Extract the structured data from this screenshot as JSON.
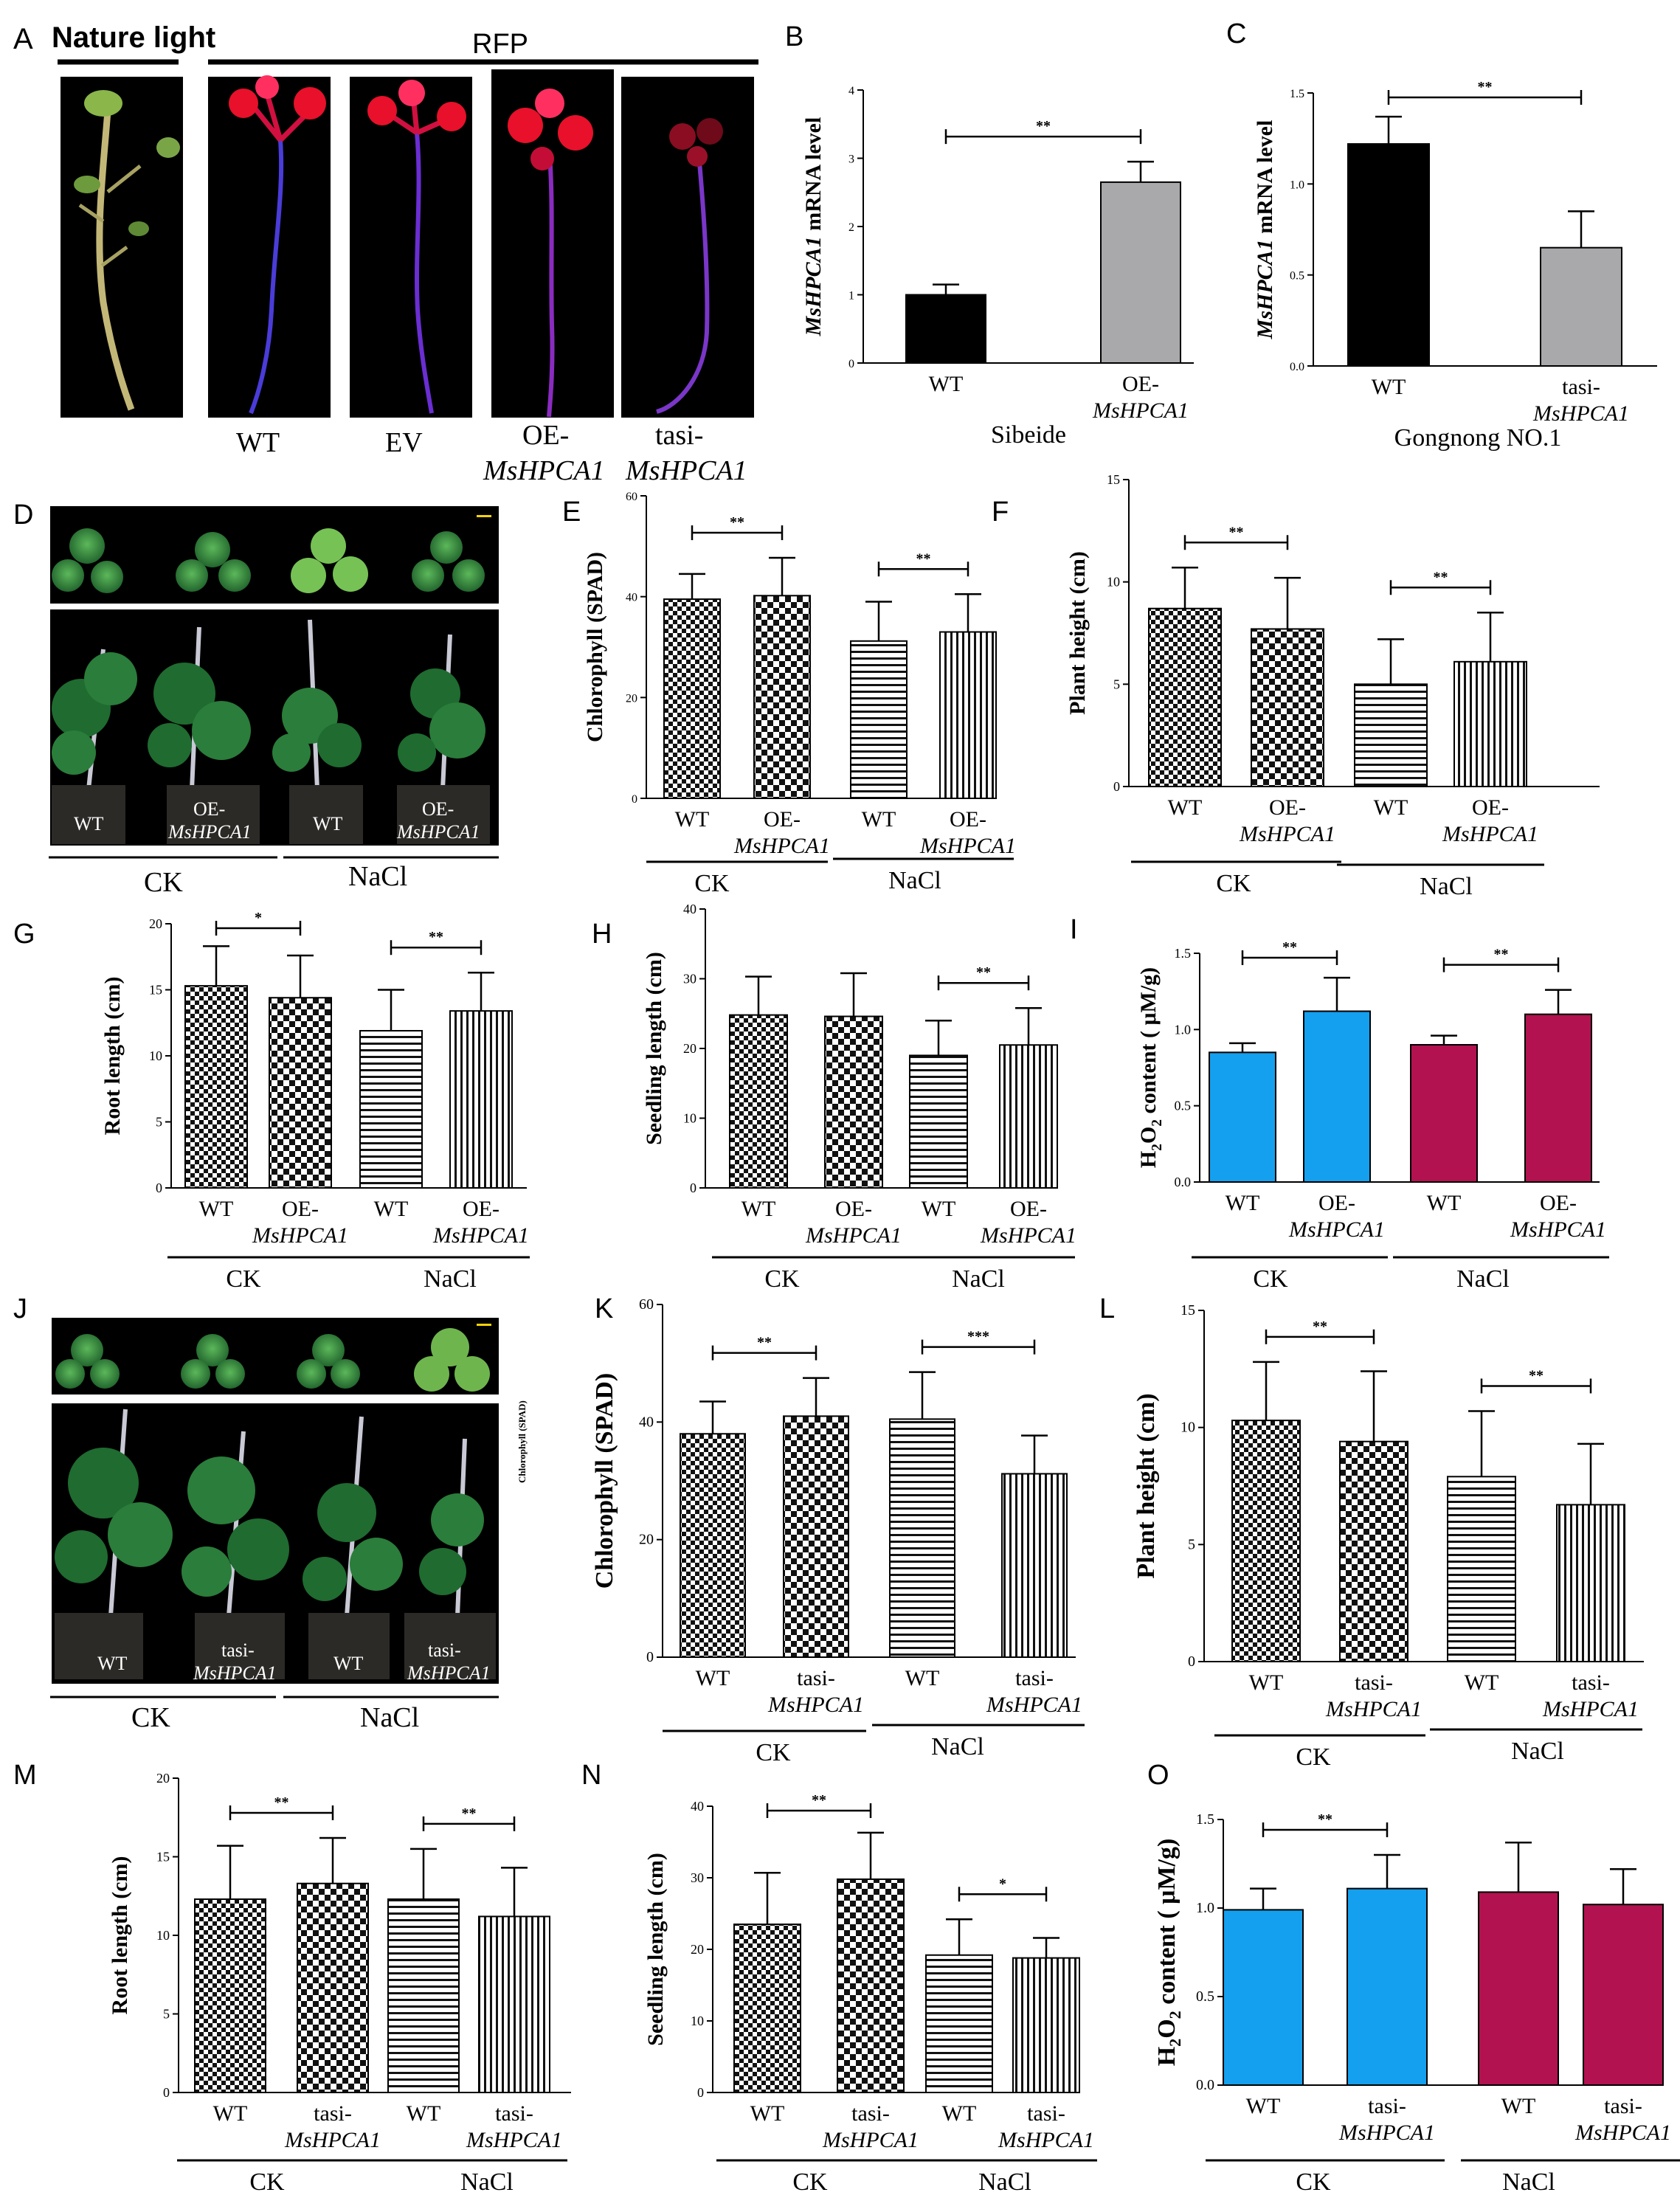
{
  "panel_letters": {
    "A": "A",
    "B": "B",
    "C": "C",
    "D": "D",
    "E": "E",
    "F": "F",
    "G": "G",
    "H": "H",
    "I": "I",
    "J": "J",
    "K": "K",
    "L": "L",
    "M": "M",
    "N": "N",
    "O": "O"
  },
  "panelA": {
    "title_left": "Nature light",
    "title_right": "RFP",
    "captions": [
      {
        "line1": "WT",
        "line2": ""
      },
      {
        "line1": "EV",
        "line2": ""
      },
      {
        "line1": "OE-",
        "line2": "MsHPCA1"
      },
      {
        "line1": "tasi-",
        "line2": "MsHPCA1"
      }
    ]
  },
  "photoD": {
    "pots": [
      "WT",
      "OE-",
      "MsHPCA1",
      "WT",
      "OE-",
      "MsHPCA1"
    ],
    "groups": [
      "CK",
      "NaCl"
    ]
  },
  "photoJ": {
    "pots": [
      "WT",
      "tasi-",
      "MsHPCA1",
      "WT",
      "tasi-",
      "MsHPCA1"
    ],
    "groups": [
      "CK",
      "NaCl"
    ],
    "side_label": "Chlorophyll (SPAD)"
  },
  "colors": {
    "black": "#000000",
    "gray": "#a9a9ab",
    "blue": "#14a0ee",
    "crimson": "#b2124f",
    "red_plant": "#e8102a",
    "blue_stem": "#4a3cd8"
  },
  "chart_data": [
    {
      "id": "B",
      "type": "bar",
      "ylabel": "MsHPCA1 mRNA level",
      "ylim": [
        0,
        4
      ],
      "yticks": [
        "0",
        "1",
        "2",
        "3",
        "4"
      ],
      "categories": [
        {
          "l1": "WT",
          "l2": ""
        },
        {
          "l1": "OE-",
          "l2": "MsHPCA1"
        }
      ],
      "values": [
        1.0,
        2.65
      ],
      "errors": [
        0.15,
        0.3
      ],
      "fills": [
        "black",
        "gray"
      ],
      "groups": [
        "Sibeide"
      ],
      "sig": [
        {
          "from": 0,
          "to": 1,
          "label": "**"
        }
      ]
    },
    {
      "id": "C",
      "type": "bar",
      "ylabel": "MsHPCA1 mRNA level",
      "ylim": [
        0,
        1.5
      ],
      "yticks": [
        "0.0",
        "0.5",
        "1.0",
        "1.5"
      ],
      "categories": [
        {
          "l1": "WT",
          "l2": ""
        },
        {
          "l1": "tasi-",
          "l2": "MsHPCA1"
        }
      ],
      "values": [
        1.22,
        0.65
      ],
      "errors": [
        0.15,
        0.2
      ],
      "fills": [
        "black",
        "gray"
      ],
      "groups": [
        "Gongnong NO.1"
      ],
      "sig": [
        {
          "from": 0,
          "to": 1,
          "label": "**"
        }
      ]
    },
    {
      "id": "E",
      "type": "bar",
      "ylabel": "Chlorophyll (SPAD)",
      "ylim": [
        0,
        60
      ],
      "yticks": [
        "0",
        "20",
        "40",
        "60"
      ],
      "categories": [
        {
          "l1": "WT",
          "l2": ""
        },
        {
          "l1": "OE-",
          "l2": "MsHPCA1"
        },
        {
          "l1": "WT",
          "l2": ""
        },
        {
          "l1": "OE-",
          "l2": "MsHPCA1"
        }
      ],
      "values": [
        39.5,
        40.2,
        31.2,
        33.0
      ],
      "errors": [
        5,
        7.5,
        7.8,
        7.5
      ],
      "fills": [
        "checkA",
        "checkB",
        "hlines",
        "vlines"
      ],
      "groups": [
        "CK",
        "NaCl"
      ],
      "sig": [
        {
          "from": 0,
          "to": 1,
          "label": "**"
        },
        {
          "from": 2,
          "to": 3,
          "label": "**"
        }
      ]
    },
    {
      "id": "F",
      "type": "bar",
      "ylabel": "Plant height (cm)",
      "ylim": [
        0,
        15
      ],
      "yticks": [
        "0",
        "5",
        "10",
        "15"
      ],
      "categories": [
        {
          "l1": "WT",
          "l2": ""
        },
        {
          "l1": "OE-",
          "l2": "MsHPCA1"
        },
        {
          "l1": "WT",
          "l2": ""
        },
        {
          "l1": "OE-",
          "l2": "MsHPCA1"
        }
      ],
      "values": [
        8.7,
        7.7,
        5.0,
        6.1
      ],
      "errors": [
        2.0,
        2.5,
        2.2,
        2.4
      ],
      "fills": [
        "checkA",
        "checkB",
        "hlines",
        "vlines"
      ],
      "groups": [
        "CK",
        "NaCl"
      ],
      "sig": [
        {
          "from": 0,
          "to": 1,
          "label": "**"
        },
        {
          "from": 2,
          "to": 3,
          "label": "**"
        }
      ]
    },
    {
      "id": "G",
      "type": "bar",
      "ylabel": "Root length (cm)",
      "ylim": [
        0,
        20
      ],
      "yticks": [
        "0",
        "5",
        "10",
        "15",
        "20"
      ],
      "categories": [
        {
          "l1": "WT",
          "l2": ""
        },
        {
          "l1": "OE-",
          "l2": "MsHPCA1"
        },
        {
          "l1": "WT",
          "l2": ""
        },
        {
          "l1": "OE-",
          "l2": "MsHPCA1"
        }
      ],
      "values": [
        15.3,
        14.4,
        11.9,
        13.4
      ],
      "errors": [
        3,
        3.2,
        3.1,
        2.9
      ],
      "fills": [
        "checkA",
        "checkB",
        "hlines",
        "vlines"
      ],
      "groups": [
        "CK",
        "NaCl"
      ],
      "sig": [
        {
          "from": 0,
          "to": 1,
          "label": "*"
        },
        {
          "from": 2,
          "to": 3,
          "label": "**"
        }
      ]
    },
    {
      "id": "H",
      "type": "bar",
      "ylabel": "Seedling length (cm)",
      "ylim": [
        0,
        40
      ],
      "yticks": [
        "0",
        "10",
        "20",
        "30",
        "40"
      ],
      "categories": [
        {
          "l1": "WT",
          "l2": ""
        },
        {
          "l1": "OE-",
          "l2": "MsHPCA1"
        },
        {
          "l1": "WT",
          "l2": ""
        },
        {
          "l1": "OE-",
          "l2": "MsHPCA1"
        }
      ],
      "values": [
        24.8,
        24.6,
        19.0,
        20.5
      ],
      "errors": [
        5.5,
        6.2,
        5.0,
        5.3
      ],
      "fills": [
        "checkA",
        "checkB",
        "hlines",
        "vlines"
      ],
      "groups": [
        "CK",
        "NaCl"
      ],
      "sig": [
        {
          "from": 2,
          "to": 3,
          "label": "**"
        }
      ]
    },
    {
      "id": "I",
      "type": "bar",
      "ylabel": "H2O2 content ( μM/g)",
      "ylim": [
        0,
        1.5
      ],
      "yticks": [
        "0.0",
        "0.5",
        "1.0",
        "1.5"
      ],
      "categories": [
        {
          "l1": "WT",
          "l2": ""
        },
        {
          "l1": "OE-",
          "l2": "MsHPCA1"
        },
        {
          "l1": "WT",
          "l2": ""
        },
        {
          "l1": "OE-",
          "l2": "MsHPCA1"
        }
      ],
      "values": [
        0.85,
        1.12,
        0.9,
        1.1
      ],
      "errors": [
        0.06,
        0.22,
        0.06,
        0.16
      ],
      "fills": [
        "blue",
        "blue",
        "crimson",
        "crimson"
      ],
      "groups": [
        "CK",
        "NaCl"
      ],
      "sig": [
        {
          "from": 0,
          "to": 1,
          "label": "**"
        },
        {
          "from": 2,
          "to": 3,
          "label": "**"
        }
      ]
    },
    {
      "id": "K",
      "type": "bar",
      "ylabel": "Chlorophyll (SPAD)",
      "ylim": [
        0,
        60
      ],
      "yticks": [
        "0",
        "20",
        "40",
        "60"
      ],
      "categories": [
        {
          "l1": "WT",
          "l2": ""
        },
        {
          "l1": "tasi-",
          "l2": "MsHPCA1"
        },
        {
          "l1": "WT",
          "l2": ""
        },
        {
          "l1": "tasi-",
          "l2": "MsHPCA1"
        }
      ],
      "values": [
        38.0,
        41.0,
        40.5,
        31.2
      ],
      "errors": [
        5.5,
        6.5,
        8,
        6.5
      ],
      "fills": [
        "checkA",
        "checkB",
        "hlines",
        "vlines"
      ],
      "groups": [
        "CK",
        "NaCl"
      ],
      "sig": [
        {
          "from": 0,
          "to": 1,
          "label": "**"
        },
        {
          "from": 2,
          "to": 3,
          "label": "***"
        }
      ]
    },
    {
      "id": "L",
      "type": "bar",
      "ylabel": "Plant height (cm)",
      "ylim": [
        0,
        15
      ],
      "yticks": [
        "0",
        "5",
        "10",
        "15"
      ],
      "categories": [
        {
          "l1": "WT",
          "l2": ""
        },
        {
          "l1": "tasi-",
          "l2": "MsHPCA1"
        },
        {
          "l1": "WT",
          "l2": ""
        },
        {
          "l1": "tasi-",
          "l2": "MsHPCA1"
        }
      ],
      "values": [
        10.3,
        9.4,
        7.9,
        6.7
      ],
      "errors": [
        2.5,
        3.0,
        2.8,
        2.6
      ],
      "fills": [
        "checkA",
        "checkB",
        "hlines",
        "vlines"
      ],
      "groups": [
        "CK",
        "NaCl"
      ],
      "sig": [
        {
          "from": 0,
          "to": 1,
          "label": "**"
        },
        {
          "from": 2,
          "to": 3,
          "label": "**"
        }
      ]
    },
    {
      "id": "M",
      "type": "bar",
      "ylabel": "Root length (cm)",
      "ylim": [
        0,
        20
      ],
      "yticks": [
        "0",
        "5",
        "10",
        "15",
        "20"
      ],
      "categories": [
        {
          "l1": "WT",
          "l2": ""
        },
        {
          "l1": "tasi-",
          "l2": "MsHPCA1"
        },
        {
          "l1": "WT",
          "l2": ""
        },
        {
          "l1": "tasi-",
          "l2": "MsHPCA1"
        }
      ],
      "values": [
        12.3,
        13.3,
        12.3,
        11.2
      ],
      "errors": [
        3.4,
        2.9,
        3.2,
        3.1
      ],
      "fills": [
        "checkA",
        "checkB",
        "hlines",
        "vlines"
      ],
      "groups": [
        "CK",
        "NaCl"
      ],
      "sig": [
        {
          "from": 0,
          "to": 1,
          "label": "**"
        },
        {
          "from": 2,
          "to": 3,
          "label": "**"
        }
      ]
    },
    {
      "id": "N",
      "type": "bar",
      "ylabel": "Seedling length (cm)",
      "ylim": [
        0,
        40
      ],
      "yticks": [
        "0",
        "10",
        "20",
        "30",
        "40"
      ],
      "categories": [
        {
          "l1": "WT",
          "l2": ""
        },
        {
          "l1": "tasi-",
          "l2": "MsHPCA1"
        },
        {
          "l1": "WT",
          "l2": ""
        },
        {
          "l1": "tasi-",
          "l2": "MsHPCA1"
        }
      ],
      "values": [
        23.5,
        29.8,
        19.2,
        18.8
      ],
      "errors": [
        7.2,
        6.5,
        5.0,
        2.8
      ],
      "fills": [
        "checkA",
        "checkB",
        "hlines",
        "vlines"
      ],
      "groups": [
        "CK",
        "NaCl"
      ],
      "sig": [
        {
          "from": 0,
          "to": 1,
          "label": "**"
        },
        {
          "from": 2,
          "to": 3,
          "label": "*"
        }
      ]
    },
    {
      "id": "O",
      "type": "bar",
      "ylabel": "H2O2 content ( μM/g)",
      "ylim": [
        0,
        1.5
      ],
      "yticks": [
        "0.0",
        "0.5",
        "1.0",
        "1.5"
      ],
      "categories": [
        {
          "l1": "WT",
          "l2": ""
        },
        {
          "l1": "tasi-",
          "l2": "MsHPCA1"
        },
        {
          "l1": "WT",
          "l2": ""
        },
        {
          "l1": "tasi-",
          "l2": "MsHPCA1"
        }
      ],
      "values": [
        0.99,
        1.11,
        1.09,
        1.02
      ],
      "errors": [
        0.12,
        0.19,
        0.28,
        0.2
      ],
      "fills": [
        "blue",
        "blue",
        "crimson",
        "crimson"
      ],
      "groups": [
        "CK",
        "NaCl"
      ],
      "sig": [
        {
          "from": 0,
          "to": 1,
          "label": "**"
        }
      ]
    }
  ]
}
